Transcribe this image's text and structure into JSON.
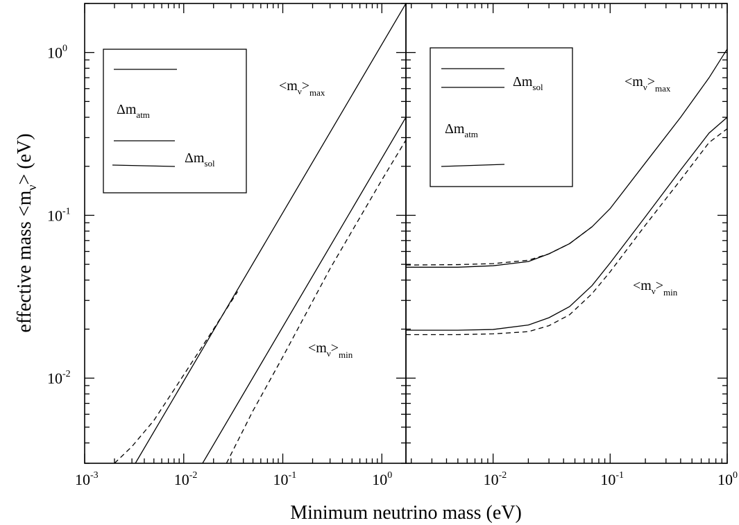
{
  "chart_data": [
    {
      "type": "line",
      "panel": "left",
      "title": "",
      "xlabel": "Minimum neutrino mass (eV)",
      "ylabel": "effective mass <m_ν> (eV)",
      "x_scale": "log",
      "y_scale": "log",
      "xlim": [
        0.001,
        1.75
      ],
      "ylim": [
        0.003,
        2.0
      ],
      "x_ticks": [
        {
          "base": "10",
          "exp": "-3"
        },
        {
          "base": "10",
          "exp": "-2"
        },
        {
          "base": "10",
          "exp": "-1"
        },
        {
          "base": "10",
          "exp": "0"
        }
      ],
      "y_ticks": [
        {
          "base": "10",
          "exp": "-2"
        },
        {
          "base": "10",
          "exp": "-1"
        },
        {
          "base": "10",
          "exp": "0"
        }
      ],
      "series": [
        {
          "style": "solid",
          "x": [
            0.00325,
            1.75
          ],
          "y": [
            0.003,
            2.0
          ]
        },
        {
          "style": "dashed",
          "x": [
            0.002,
            0.003,
            0.005,
            0.008,
            0.02,
            0.035
          ],
          "y": [
            0.003,
            0.0038,
            0.0055,
            0.0085,
            0.02,
            0.034
          ]
        },
        {
          "style": "solid",
          "x": [
            0.0155,
            1.75
          ],
          "y": [
            0.003,
            0.4
          ]
        },
        {
          "style": "dashed",
          "x": [
            0.027,
            0.05,
            0.1,
            0.3,
            1.0,
            1.75
          ],
          "y": [
            0.003,
            0.0063,
            0.0135,
            0.047,
            0.165,
            0.29
          ]
        }
      ],
      "annotations": [
        {
          "main": "<m",
          "sub1": "ν",
          "mid": ">",
          "sub2": "max"
        },
        {
          "main": "<m",
          "sub1": "ν",
          "mid": ">",
          "sub2": "min"
        }
      ],
      "legend": {
        "label_atm": {
          "main": "Δm",
          "sub": "atm"
        },
        "label_sol": {
          "main": "Δm",
          "sub": "sol"
        }
      }
    },
    {
      "type": "line",
      "panel": "right",
      "title": "",
      "xlabel": "Minimum neutrino mass (eV)",
      "x_scale": "log",
      "y_scale": "log",
      "xlim": [
        0.0018,
        1.0
      ],
      "ylim": [
        0.003,
        2.0
      ],
      "x_ticks": [
        {
          "base": "10",
          "exp": "-2"
        },
        {
          "base": "10",
          "exp": "-1"
        },
        {
          "base": "10",
          "exp": "0"
        }
      ],
      "series": [
        {
          "style": "solid",
          "x": [
            0.0018,
            0.005,
            0.01,
            0.02,
            0.03,
            0.045,
            0.07,
            0.1,
            0.2,
            0.4,
            0.7,
            1.0
          ],
          "y": [
            0.048,
            0.048,
            0.049,
            0.052,
            0.058,
            0.067,
            0.085,
            0.11,
            0.21,
            0.4,
            0.7,
            1.05
          ]
        },
        {
          "style": "dashed",
          "x": [
            0.0018,
            0.005,
            0.01,
            0.02,
            0.03,
            0.045,
            0.07
          ],
          "y": [
            0.0495,
            0.0498,
            0.0505,
            0.053,
            0.058,
            0.067,
            0.085
          ]
        },
        {
          "style": "solid",
          "x": [
            0.0018,
            0.005,
            0.01,
            0.02,
            0.03,
            0.045,
            0.07,
            0.1,
            0.2,
            0.4,
            0.7,
            1.0
          ],
          "y": [
            0.0197,
            0.0197,
            0.0199,
            0.0212,
            0.0235,
            0.0275,
            0.037,
            0.051,
            0.098,
            0.19,
            0.32,
            0.4
          ]
        },
        {
          "style": "dashed",
          "x": [
            0.0018,
            0.005,
            0.01,
            0.02,
            0.03,
            0.045,
            0.07,
            0.1,
            0.2,
            0.4,
            0.7,
            1.0
          ],
          "y": [
            0.0185,
            0.0185,
            0.0187,
            0.0193,
            0.021,
            0.0245,
            0.033,
            0.045,
            0.087,
            0.165,
            0.28,
            0.34
          ]
        }
      ],
      "annotations": [
        {
          "main": "<m",
          "sub1": "ν",
          "mid": ">",
          "sub2": "max"
        },
        {
          "main": "<m",
          "sub1": "ν",
          "mid": ">",
          "sub2": "min"
        }
      ],
      "legend": {
        "label_sol": {
          "main": "Δm",
          "sub": "sol"
        },
        "label_atm": {
          "main": "Δm",
          "sub": "atm"
        }
      }
    }
  ],
  "y_axis_title": {
    "main": "effective mass <m",
    "sub": "ν",
    "tail": "> (eV)"
  },
  "x_axis_title": "Minimum neutrino mass (eV)"
}
